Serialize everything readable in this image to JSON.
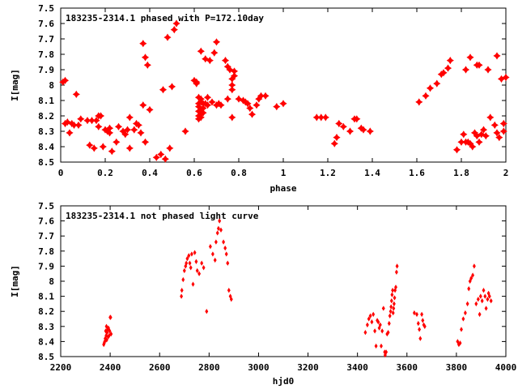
{
  "chart_data": [
    {
      "type": "scatter",
      "title": "183235-2314.1 phased with P=172.10day",
      "xlabel": "phase",
      "ylabel": "I[mag]",
      "xlim": [
        0,
        2
      ],
      "ylim": [
        8.5,
        7.5
      ],
      "y_inverted": true,
      "grid": false,
      "marker_color": "#ff0000",
      "marker": "star",
      "x_ticks": [
        "0",
        "0.2",
        "0.4",
        "0.6",
        "0.8",
        "1",
        "1.2",
        "1.4",
        "1.6",
        "1.8",
        "2"
      ],
      "y_ticks": [
        "7.5",
        "7.6",
        "7.7",
        "7.8",
        "7.9",
        "8",
        "8.1",
        "8.2",
        "8.3",
        "8.4",
        "8.5"
      ],
      "series": [
        {
          "points": [
            [
              0.01,
              7.98
            ],
            [
              0.02,
              7.97
            ],
            [
              0.02,
              8.25
            ],
            [
              0.03,
              8.24
            ],
            [
              0.04,
              8.31
            ],
            [
              0.05,
              8.25
            ],
            [
              0.06,
              8.26
            ],
            [
              0.07,
              8.06
            ],
            [
              0.08,
              8.26
            ],
            [
              0.09,
              8.22
            ],
            [
              0.12,
              8.23
            ],
            [
              0.13,
              8.39
            ],
            [
              0.14,
              8.23
            ],
            [
              0.15,
              8.41
            ],
            [
              0.16,
              8.23
            ],
            [
              0.17,
              8.2
            ],
            [
              0.17,
              8.27
            ],
            [
              0.18,
              8.2
            ],
            [
              0.19,
              8.4
            ],
            [
              0.2,
              8.29
            ],
            [
              0.21,
              8.3
            ],
            [
              0.22,
              8.28
            ],
            [
              0.22,
              8.31
            ],
            [
              0.23,
              8.43
            ],
            [
              0.25,
              8.37
            ],
            [
              0.26,
              8.27
            ],
            [
              0.28,
              8.3
            ],
            [
              0.29,
              8.32
            ],
            [
              0.3,
              8.29
            ],
            [
              0.31,
              8.21
            ],
            [
              0.31,
              8.41
            ],
            [
              0.33,
              8.29
            ],
            [
              0.34,
              8.25
            ],
            [
              0.35,
              8.26
            ],
            [
              0.36,
              8.31
            ],
            [
              0.37,
              7.73
            ],
            [
              0.37,
              8.13
            ],
            [
              0.38,
              7.82
            ],
            [
              0.38,
              8.37
            ],
            [
              0.39,
              7.87
            ],
            [
              0.4,
              8.16
            ],
            [
              0.43,
              8.47
            ],
            [
              0.45,
              8.45
            ],
            [
              0.46,
              8.03
            ],
            [
              0.47,
              8.48
            ],
            [
              0.48,
              7.69
            ],
            [
              0.49,
              8.41
            ],
            [
              0.5,
              8.01
            ],
            [
              0.51,
              7.64
            ],
            [
              0.52,
              7.6
            ],
            [
              0.56,
              8.3
            ],
            [
              0.6,
              7.97
            ],
            [
              0.61,
              7.98
            ],
            [
              0.61,
              7.99
            ],
            [
              0.62,
              8.08
            ],
            [
              0.62,
              8.12
            ],
            [
              0.62,
              8.14
            ],
            [
              0.62,
              8.17
            ],
            [
              0.62,
              8.2
            ],
            [
              0.62,
              8.22
            ],
            [
              0.63,
              7.78
            ],
            [
              0.63,
              8.09
            ],
            [
              0.63,
              8.11
            ],
            [
              0.63,
              8.16
            ],
            [
              0.63,
              8.19
            ],
            [
              0.63,
              8.21
            ],
            [
              0.64,
              8.12
            ],
            [
              0.64,
              8.15
            ],
            [
              0.64,
              8.18
            ],
            [
              0.65,
              7.83
            ],
            [
              0.65,
              8.12
            ],
            [
              0.66,
              8.08
            ],
            [
              0.66,
              8.13
            ],
            [
              0.67,
              7.84
            ],
            [
              0.68,
              8.11
            ],
            [
              0.69,
              7.79
            ],
            [
              0.7,
              7.72
            ],
            [
              0.7,
              8.13
            ],
            [
              0.71,
              8.12
            ],
            [
              0.72,
              8.13
            ],
            [
              0.74,
              7.84
            ],
            [
              0.75,
              7.88
            ],
            [
              0.75,
              8.09
            ],
            [
              0.76,
              7.9
            ],
            [
              0.77,
              7.96
            ],
            [
              0.77,
              8.0
            ],
            [
              0.77,
              8.03
            ],
            [
              0.77,
              8.21
            ],
            [
              0.78,
              7.91
            ],
            [
              0.78,
              7.94
            ],
            [
              0.8,
              8.09
            ],
            [
              0.82,
              8.1
            ],
            [
              0.83,
              8.11
            ],
            [
              0.84,
              8.12
            ],
            [
              0.85,
              8.15
            ],
            [
              0.86,
              8.19
            ],
            [
              0.88,
              8.13
            ],
            [
              0.89,
              8.09
            ],
            [
              0.9,
              8.07
            ],
            [
              0.92,
              8.07
            ],
            [
              0.97,
              8.14
            ],
            [
              1.0,
              8.12
            ],
            [
              1.15,
              8.21
            ],
            [
              1.17,
              8.21
            ],
            [
              1.19,
              8.21
            ],
            [
              1.23,
              8.38
            ],
            [
              1.24,
              8.34
            ],
            [
              1.25,
              8.25
            ],
            [
              1.27,
              8.27
            ],
            [
              1.3,
              8.3
            ],
            [
              1.32,
              8.22
            ],
            [
              1.33,
              8.22
            ],
            [
              1.35,
              8.28
            ],
            [
              1.36,
              8.29
            ],
            [
              1.39,
              8.3
            ],
            [
              1.61,
              8.11
            ],
            [
              1.64,
              8.07
            ],
            [
              1.66,
              8.02
            ],
            [
              1.69,
              7.99
            ],
            [
              1.71,
              7.93
            ],
            [
              1.72,
              7.92
            ],
            [
              1.74,
              7.89
            ],
            [
              1.75,
              7.84
            ],
            [
              1.78,
              8.42
            ],
            [
              1.8,
              8.37
            ],
            [
              1.81,
              8.32
            ],
            [
              1.82,
              8.37
            ],
            [
              1.82,
              7.9
            ],
            [
              1.83,
              8.37
            ],
            [
              1.84,
              8.38
            ],
            [
              1.84,
              7.82
            ],
            [
              1.85,
              8.4
            ],
            [
              1.86,
              8.31
            ],
            [
              1.87,
              8.33
            ],
            [
              1.88,
              8.37
            ],
            [
              1.89,
              8.32
            ],
            [
              1.9,
              8.29
            ],
            [
              1.91,
              8.33
            ],
            [
              1.92,
              7.9
            ],
            [
              1.93,
              8.21
            ],
            [
              1.95,
              8.26
            ],
            [
              1.96,
              8.31
            ],
            [
              1.97,
              8.34
            ],
            [
              1.98,
              7.96
            ],
            [
              1.99,
              8.25
            ],
            [
              1.99,
              8.3
            ],
            [
              2.0,
              7.95
            ],
            [
              1.87,
              7.87
            ],
            [
              1.88,
              7.87
            ],
            [
              1.96,
              7.81
            ]
          ]
        }
      ]
    },
    {
      "type": "scatter",
      "title": "183235-2314.1 not phased light curve",
      "xlabel": "hjd0",
      "ylabel": "I[mag]",
      "xlim": [
        2200,
        4000
      ],
      "ylim": [
        8.5,
        7.5
      ],
      "y_inverted": true,
      "grid": false,
      "marker_color": "#ff0000",
      "marker": "diamond",
      "x_ticks": [
        "2200",
        "2400",
        "2600",
        "2800",
        "3000",
        "3200",
        "3400",
        "3600",
        "3800",
        "4000"
      ],
      "y_ticks": [
        "7.5",
        "7.6",
        "7.7",
        "7.8",
        "7.9",
        "8",
        "8.1",
        "8.2",
        "8.3",
        "8.4",
        "8.5"
      ],
      "series": [
        {
          "points": [
            [
              2374,
              8.42
            ],
            [
              2376,
              8.41
            ],
            [
              2378,
              8.4
            ],
            [
              2380,
              8.38
            ],
            [
              2382,
              8.33
            ],
            [
              2384,
              8.36
            ],
            [
              2385,
              8.3
            ],
            [
              2386,
              8.39
            ],
            [
              2388,
              8.34
            ],
            [
              2390,
              8.32
            ],
            [
              2392,
              8.37
            ],
            [
              2393,
              8.31
            ],
            [
              2396,
              8.36
            ],
            [
              2398,
              8.33
            ],
            [
              2400,
              8.24
            ],
            [
              2402,
              8.24
            ],
            [
              2404,
              8.35
            ],
            [
              2688,
              8.1
            ],
            [
              2690,
              8.06
            ],
            [
              2695,
              7.99
            ],
            [
              2700,
              7.93
            ],
            [
              2705,
              7.9
            ],
            [
              2708,
              7.88
            ],
            [
              2712,
              7.85
            ],
            [
              2718,
              7.83
            ],
            [
              2722,
              7.88
            ],
            [
              2726,
              7.91
            ],
            [
              2730,
              7.82
            ],
            [
              2735,
              8.02
            ],
            [
              2742,
              7.81
            ],
            [
              2748,
              7.87
            ],
            [
              2752,
              7.93
            ],
            [
              2760,
              7.95
            ],
            [
              2770,
              7.88
            ],
            [
              2778,
              7.91
            ],
            [
              2790,
              8.2
            ],
            [
              2805,
              7.77
            ],
            [
              2815,
              7.82
            ],
            [
              2824,
              7.86
            ],
            [
              2828,
              7.74
            ],
            [
              2834,
              7.68
            ],
            [
              2838,
              7.65
            ],
            [
              2842,
              7.6
            ],
            [
              2848,
              7.66
            ],
            [
              2858,
              7.74
            ],
            [
              2865,
              7.78
            ],
            [
              2870,
              7.82
            ],
            [
              2875,
              7.88
            ],
            [
              2880,
              8.06
            ],
            [
              2886,
              8.1
            ],
            [
              2890,
              8.12
            ],
            [
              3432,
              8.34
            ],
            [
              3440,
              8.29
            ],
            [
              3446,
              8.25
            ],
            [
              3452,
              8.23
            ],
            [
              3458,
              8.27
            ],
            [
              3464,
              8.22
            ],
            [
              3470,
              8.33
            ],
            [
              3475,
              8.43
            ],
            [
              3480,
              8.26
            ],
            [
              3484,
              8.27
            ],
            [
              3488,
              8.31
            ],
            [
              3492,
              8.29
            ],
            [
              3496,
              8.43
            ],
            [
              3500,
              8.33
            ],
            [
              3505,
              8.18
            ],
            [
              3510,
              8.47
            ],
            [
              3512,
              8.49
            ],
            [
              3516,
              8.47
            ],
            [
              3520,
              8.35
            ],
            [
              3524,
              8.34
            ],
            [
              3528,
              8.28
            ],
            [
              3531,
              8.23
            ],
            [
              3534,
              8.2
            ],
            [
              3536,
              8.17
            ],
            [
              3538,
              8.13
            ],
            [
              3540,
              8.09
            ],
            [
              3542,
              8.06
            ],
            [
              3544,
              8.21
            ],
            [
              3546,
              8.18
            ],
            [
              3548,
              8.15
            ],
            [
              3550,
              8.11
            ],
            [
              3552,
              8.06
            ],
            [
              3555,
              8.04
            ],
            [
              3558,
              7.94
            ],
            [
              3560,
              7.9
            ],
            [
              3630,
              8.21
            ],
            [
              3640,
              8.22
            ],
            [
              3646,
              8.28
            ],
            [
              3650,
              8.32
            ],
            [
              3654,
              8.38
            ],
            [
              3660,
              8.22
            ],
            [
              3664,
              8.26
            ],
            [
              3668,
              8.29
            ],
            [
              3672,
              8.3
            ],
            [
              3805,
              8.4
            ],
            [
              3810,
              8.42
            ],
            [
              3815,
              8.41
            ],
            [
              3820,
              8.32
            ],
            [
              3828,
              8.25
            ],
            [
              3836,
              8.21
            ],
            [
              3845,
              8.15
            ],
            [
              3850,
              8.05
            ],
            [
              3855,
              8.0
            ],
            [
              3860,
              7.98
            ],
            [
              3866,
              7.96
            ],
            [
              3872,
              7.9
            ],
            [
              3880,
              8.15
            ],
            [
              3888,
              8.12
            ],
            [
              3894,
              8.22
            ],
            [
              3898,
              8.1
            ],
            [
              3904,
              8.13
            ],
            [
              3910,
              8.06
            ],
            [
              3916,
              8.1
            ],
            [
              3920,
              8.18
            ],
            [
              3926,
              8.12
            ],
            [
              3930,
              8.08
            ],
            [
              3934,
              8.1
            ],
            [
              3940,
              8.13
            ]
          ]
        }
      ]
    }
  ]
}
